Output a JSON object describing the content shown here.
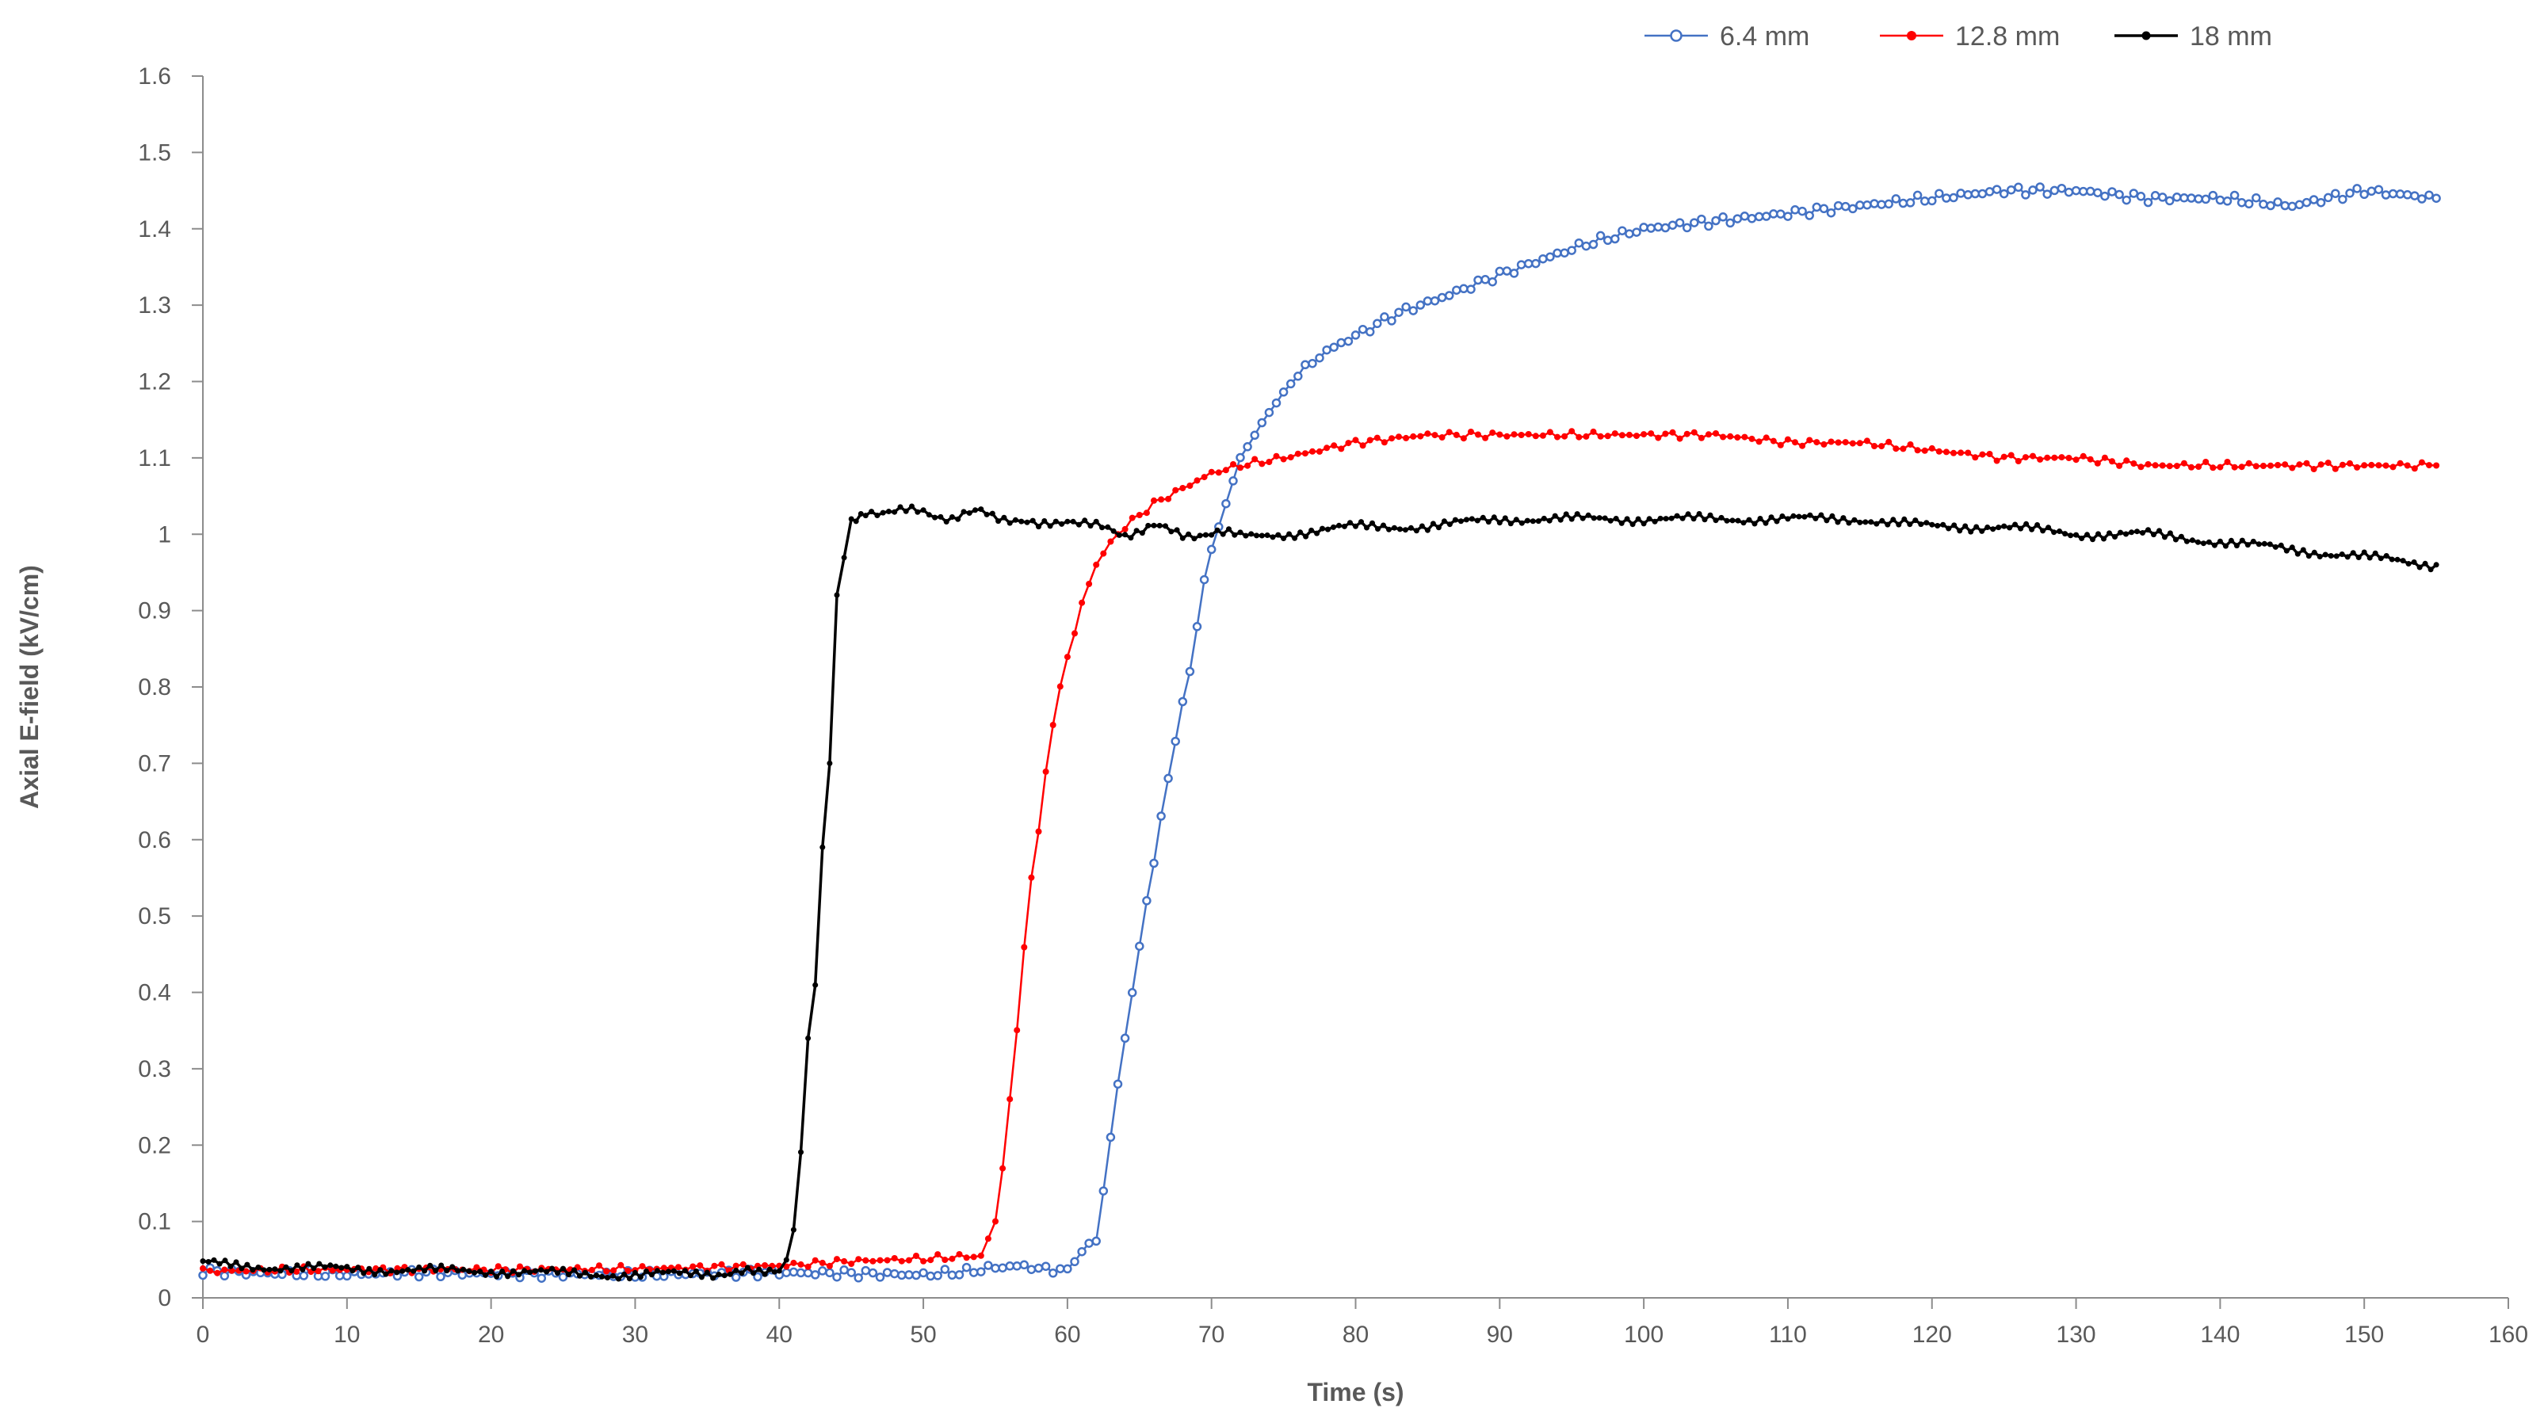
{
  "chart_data": {
    "type": "line",
    "title": "",
    "xlabel": "Time (s)",
    "ylabel": "Axial E-field (kV/cm)",
    "xlim": [
      0,
      160
    ],
    "ylim": [
      0,
      1.6
    ],
    "x_ticks": [
      0,
      10,
      20,
      30,
      40,
      50,
      60,
      70,
      80,
      90,
      100,
      110,
      120,
      130,
      140,
      150,
      160
    ],
    "y_ticks": [
      0,
      0.1,
      0.2,
      0.3,
      0.4,
      0.5,
      0.6,
      0.7,
      0.8,
      0.9,
      1,
      1.1,
      1.2,
      1.3,
      1.4,
      1.5,
      1.6
    ],
    "grid": false,
    "legend_position": "top-right",
    "series": [
      {
        "name": "6.4 mm",
        "color": "#4472C4",
        "marker": "open-circle",
        "points": [
          [
            0,
            0.035
          ],
          [
            5,
            0.032
          ],
          [
            10,
            0.031
          ],
          [
            15,
            0.033
          ],
          [
            20,
            0.032
          ],
          [
            25,
            0.031
          ],
          [
            30,
            0.03
          ],
          [
            35,
            0.032
          ],
          [
            40,
            0.033
          ],
          [
            45,
            0.032
          ],
          [
            50,
            0.03
          ],
          [
            53,
            0.034
          ],
          [
            55,
            0.04
          ],
          [
            57,
            0.042
          ],
          [
            58,
            0.038
          ],
          [
            60,
            0.037
          ],
          [
            61,
            0.06
          ],
          [
            62,
            0.075
          ],
          [
            62.5,
            0.14
          ],
          [
            63,
            0.21
          ],
          [
            63.5,
            0.28
          ],
          [
            64,
            0.34
          ],
          [
            64.5,
            0.4
          ],
          [
            65,
            0.46
          ],
          [
            65.5,
            0.52
          ],
          [
            66,
            0.57
          ],
          [
            66.5,
            0.63
          ],
          [
            67,
            0.68
          ],
          [
            67.5,
            0.73
          ],
          [
            68,
            0.78
          ],
          [
            68.5,
            0.82
          ],
          [
            69,
            0.88
          ],
          [
            69.5,
            0.94
          ],
          [
            70,
            0.98
          ],
          [
            71,
            1.04
          ],
          [
            72,
            1.1
          ],
          [
            74,
            1.16
          ],
          [
            76,
            1.21
          ],
          [
            78,
            1.24
          ],
          [
            80,
            1.26
          ],
          [
            83,
            1.29
          ],
          [
            86,
            1.31
          ],
          [
            90,
            1.34
          ],
          [
            93,
            1.36
          ],
          [
            96,
            1.38
          ],
          [
            100,
            1.4
          ],
          [
            105,
            1.41
          ],
          [
            110,
            1.42
          ],
          [
            115,
            1.43
          ],
          [
            120,
            1.44
          ],
          [
            125,
            1.45
          ],
          [
            130,
            1.45
          ],
          [
            135,
            1.44
          ],
          [
            140,
            1.44
          ],
          [
            145,
            1.43
          ],
          [
            150,
            1.45
          ],
          [
            155,
            1.44
          ]
        ]
      },
      {
        "name": "12.8 mm",
        "color": "#FF0000",
        "marker": "dot",
        "points": [
          [
            0,
            0.035
          ],
          [
            10,
            0.037
          ],
          [
            20,
            0.037
          ],
          [
            30,
            0.038
          ],
          [
            40,
            0.042
          ],
          [
            45,
            0.048
          ],
          [
            50,
            0.051
          ],
          [
            54,
            0.055
          ],
          [
            55,
            0.1
          ],
          [
            55.5,
            0.17
          ],
          [
            56,
            0.26
          ],
          [
            56.5,
            0.35
          ],
          [
            57,
            0.46
          ],
          [
            57.5,
            0.55
          ],
          [
            58,
            0.61
          ],
          [
            58.5,
            0.69
          ],
          [
            59,
            0.75
          ],
          [
            59.5,
            0.8
          ],
          [
            60,
            0.84
          ],
          [
            60.5,
            0.87
          ],
          [
            61,
            0.91
          ],
          [
            62,
            0.96
          ],
          [
            63,
            0.99
          ],
          [
            64,
            1.01
          ],
          [
            66,
            1.04
          ],
          [
            68,
            1.06
          ],
          [
            70,
            1.08
          ],
          [
            72,
            1.09
          ],
          [
            75,
            1.1
          ],
          [
            80,
            1.12
          ],
          [
            85,
            1.13
          ],
          [
            90,
            1.13
          ],
          [
            95,
            1.13
          ],
          [
            100,
            1.13
          ],
          [
            105,
            1.13
          ],
          [
            110,
            1.12
          ],
          [
            115,
            1.12
          ],
          [
            120,
            1.11
          ],
          [
            125,
            1.1
          ],
          [
            130,
            1.1
          ],
          [
            135,
            1.09
          ],
          [
            140,
            1.09
          ],
          [
            145,
            1.09
          ],
          [
            150,
            1.09
          ],
          [
            155,
            1.09
          ]
        ]
      },
      {
        "name": "18 mm",
        "color": "#000000",
        "marker": "dot",
        "points": [
          [
            0,
            0.045
          ],
          [
            5,
            0.04
          ],
          [
            10,
            0.038
          ],
          [
            15,
            0.036
          ],
          [
            20,
            0.035
          ],
          [
            25,
            0.032
          ],
          [
            30,
            0.03
          ],
          [
            35,
            0.032
          ],
          [
            39,
            0.033
          ],
          [
            40,
            0.034
          ],
          [
            40.5,
            0.05
          ],
          [
            41,
            0.09
          ],
          [
            41.5,
            0.19
          ],
          [
            42,
            0.34
          ],
          [
            42.5,
            0.41
          ],
          [
            43,
            0.59
          ],
          [
            43.5,
            0.7
          ],
          [
            44,
            0.92
          ],
          [
            44.5,
            0.97
          ],
          [
            45,
            1.02
          ],
          [
            46,
            1.03
          ],
          [
            48,
            1.03
          ],
          [
            50,
            1.03
          ],
          [
            52,
            1.02
          ],
          [
            54,
            1.03
          ],
          [
            56,
            1.02
          ],
          [
            58,
            1.01
          ],
          [
            60,
            1.02
          ],
          [
            62,
            1.01
          ],
          [
            64,
            1.0
          ],
          [
            66,
            1.01
          ],
          [
            68,
            1.0
          ],
          [
            70,
            1.0
          ],
          [
            72,
            1.0
          ],
          [
            75,
            1.0
          ],
          [
            80,
            1.01
          ],
          [
            85,
            1.01
          ],
          [
            90,
            1.02
          ],
          [
            95,
            1.02
          ],
          [
            100,
            1.02
          ],
          [
            105,
            1.02
          ],
          [
            110,
            1.02
          ],
          [
            115,
            1.02
          ],
          [
            120,
            1.01
          ],
          [
            125,
            1.01
          ],
          [
            130,
            1.0
          ],
          [
            135,
            1.0
          ],
          [
            140,
            0.99
          ],
          [
            145,
            0.98
          ],
          [
            150,
            0.97
          ],
          [
            155,
            0.96
          ]
        ]
      }
    ]
  }
}
